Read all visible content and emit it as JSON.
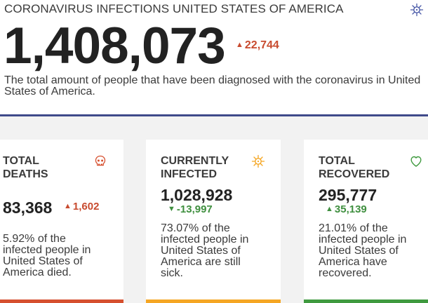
{
  "header": {
    "title": "CORONAVIRUS INFECTIONS UNITED STATES OF AMERICA",
    "icon": "virus-icon",
    "total": "1,408,073",
    "delta": "22,744",
    "description": "The total amount of people that have been diagnosed with the coronavirus in United States of America."
  },
  "cards": {
    "deaths": {
      "title": "TOTAL DEATHS",
      "icon": "skull-icon",
      "value": "83,368",
      "delta": "1,602",
      "description": "5.92% of the infected people in United States of America died.",
      "accent": "#d6502f"
    },
    "infected": {
      "title": "CURRENTLY INFECTED",
      "icon": "virus-icon",
      "value": "1,028,928",
      "delta": "-13,997",
      "description": "73.07% of the infected people in United States of America are still sick.",
      "accent": "#f5a623"
    },
    "recovered": {
      "title": "TOTAL RECOVERED",
      "icon": "heart-icon",
      "value": "295,777",
      "delta": "35,139",
      "description": "21.01% of the infected people in United States of America have recovered.",
      "accent": "#3f9a3f"
    }
  },
  "colors": {
    "increase": "#c84b2f",
    "decrease": "#3f8f3f",
    "header_rule": "#3f4a8a"
  }
}
